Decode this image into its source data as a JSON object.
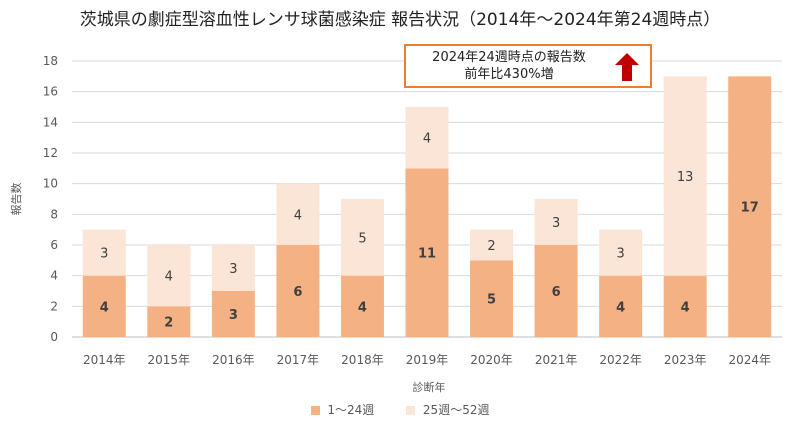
{
  "chart_data": {
    "type": "bar",
    "stacked": true,
    "title": "茨城県の劇症型溶血性レンサ球菌感染症 報告状況（2014年～2024年第24週時点）",
    "xlabel": "診断年",
    "ylabel": "報告数",
    "ylim": [
      0,
      18
    ],
    "yticks": [
      "0",
      "2",
      "4",
      "6",
      "8",
      "10",
      "12",
      "14",
      "16",
      "18"
    ],
    "categories": [
      "2014年",
      "2015年",
      "2016年",
      "2017年",
      "2018年",
      "2019年",
      "2020年",
      "2021年",
      "2022年",
      "2023年",
      "2024年"
    ],
    "series": [
      {
        "name": "1～24週",
        "values": [
          4,
          2,
          3,
          6,
          4,
          11,
          5,
          6,
          4,
          4,
          17
        ],
        "color": "#f4b183",
        "labels_bold": true
      },
      {
        "name": "25週～52週",
        "values": [
          3,
          4,
          3,
          4,
          5,
          4,
          2,
          3,
          3,
          13,
          null
        ],
        "color": "#fbe5d6",
        "labels_bold": false
      }
    ],
    "grid": true,
    "legend_position": "bottom",
    "annotation": {
      "line1": "2024年24週時点の報告数",
      "line2": "前年比430%増",
      "border_color": "#ed7d31",
      "arrow_color": "#c00000"
    }
  }
}
